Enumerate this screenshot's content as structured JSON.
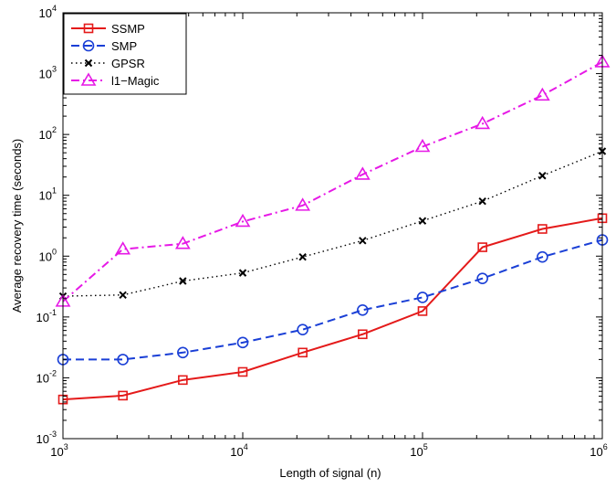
{
  "chart_data": {
    "type": "line",
    "title": "",
    "xlabel": "Length of signal (n)",
    "ylabel": "Average recovery time (seconds)",
    "x_scale": "log",
    "y_scale": "log",
    "xlim": [
      1000,
      1000000
    ],
    "ylim": [
      0.001,
      10000
    ],
    "x_ticks": [
      {
        "value": 1000,
        "base": "10",
        "exp": "3"
      },
      {
        "value": 10000,
        "base": "10",
        "exp": "4"
      },
      {
        "value": 100000,
        "base": "10",
        "exp": "5"
      },
      {
        "value": 1000000,
        "base": "10",
        "exp": "6"
      }
    ],
    "y_ticks": [
      {
        "value": 0.001,
        "base": "10",
        "exp": "-3"
      },
      {
        "value": 0.01,
        "base": "10",
        "exp": "-2"
      },
      {
        "value": 0.1,
        "base": "10",
        "exp": "-1"
      },
      {
        "value": 1,
        "base": "10",
        "exp": "0"
      },
      {
        "value": 10,
        "base": "10",
        "exp": "1"
      },
      {
        "value": 100,
        "base": "10",
        "exp": "2"
      },
      {
        "value": 1000,
        "base": "10",
        "exp": "3"
      },
      {
        "value": 10000,
        "base": "10",
        "exp": "4"
      }
    ],
    "grid": false,
    "legend_position": "top-left",
    "x": [
      1000,
      2154,
      4642,
      10000,
      21544,
      46416,
      100000,
      215443,
      464159,
      1000000
    ],
    "series": [
      {
        "name": "SSMP",
        "color": "#e41a1a",
        "dash": "solid",
        "marker": "square",
        "values": [
          0.0044,
          0.0051,
          0.0092,
          0.0125,
          0.026,
          0.052,
          0.125,
          1.4,
          2.8,
          4.2
        ]
      },
      {
        "name": "SMP",
        "color": "#1a3fd6",
        "dash": "dashed",
        "marker": "circle",
        "values": [
          0.02,
          0.02,
          0.026,
          0.038,
          0.062,
          0.13,
          0.21,
          0.43,
          0.97,
          1.85
        ]
      },
      {
        "name": "GPSR",
        "color": "#000000",
        "dash": "dotted",
        "marker": "x",
        "values": [
          0.22,
          0.23,
          0.39,
          0.53,
          0.97,
          1.8,
          3.8,
          8.0,
          21,
          53
        ]
      },
      {
        "name": "l1−Magic",
        "color": "#e619e6",
        "dash": "dashdot",
        "marker": "triangle",
        "values": [
          0.18,
          1.3,
          1.6,
          3.7,
          6.8,
          22,
          63,
          150,
          440,
          1550
        ]
      }
    ]
  }
}
